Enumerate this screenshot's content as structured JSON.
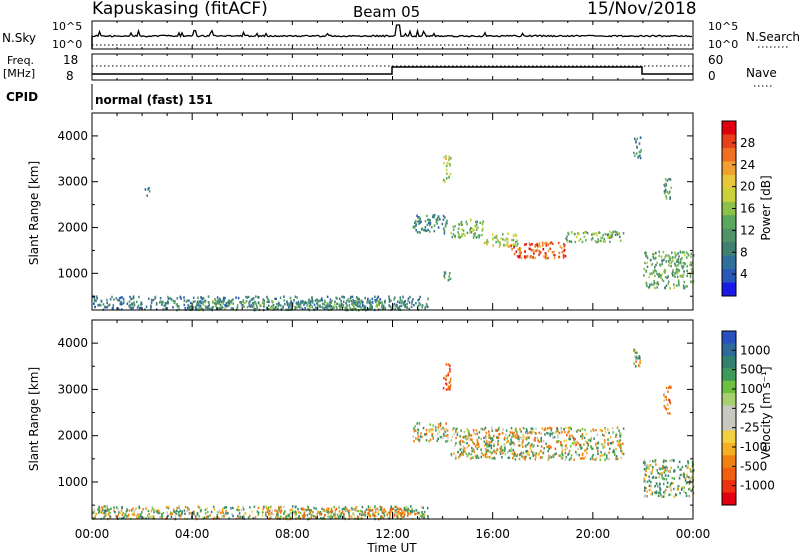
{
  "header": {
    "station": "Kapuskasing (fitACF)",
    "beam": "Beam 05",
    "date": "15/Nov/2018"
  },
  "strips": {
    "nsky_label": "N.Sky",
    "nsky_ticks": [
      "10^5",
      "10^0"
    ],
    "nsearch_label": "N.Search",
    "freq_label_1": "Freq.",
    "freq_label_2": "[MHz]",
    "freq_ticks": [
      "18",
      "8"
    ],
    "nave_label": "Nave",
    "nave_ticks": [
      "60",
      "0"
    ],
    "cpid_label": "CPID",
    "cpid_value": "normal (fast) 151"
  },
  "panels": {
    "ylabel": "Slant Range [km]",
    "yticks": [
      "1000",
      "2000",
      "3000",
      "4000"
    ],
    "xlabel": "Time UT",
    "xticks": [
      "00:00",
      "04:00",
      "08:00",
      "12:00",
      "16:00",
      "20:00",
      "00:00"
    ]
  },
  "colorbars": {
    "power": {
      "label": "Power [dB]",
      "ticks": [
        "4",
        "8",
        "12",
        "16",
        "20",
        "24",
        "28"
      ],
      "colors": [
        "#1a1ae6",
        "#2858b8",
        "#2f6f9a",
        "#3f8070",
        "#4f9468",
        "#5aa860",
        "#8cc048",
        "#c9d23a",
        "#e8c83a",
        "#f0a030",
        "#ee7020",
        "#e84018",
        "#e00010"
      ]
    },
    "velocity": {
      "label": "Velocity [m s⁻¹]",
      "ticks": [
        "1000",
        "500",
        "100",
        "25",
        "-25",
        "-100",
        "-500",
        "-1000"
      ],
      "colors": [
        "#2850c0",
        "#2d6a9a",
        "#338070",
        "#3f9a5a",
        "#6ec040",
        "#a8d070",
        "#c8c8c0",
        "#c8c8c0",
        "#f2d040",
        "#f4b020",
        "#f08010",
        "#f06010",
        "#ec3010",
        "#e00010"
      ]
    }
  },
  "chart_data": [
    {
      "type": "heatmap",
      "title": "Power",
      "xlabel": "Time UT",
      "ylabel": "Slant Range [km]",
      "xlim": [
        0,
        24
      ],
      "ylim": [
        200,
        4500
      ],
      "colorbar_label": "Power [dB]",
      "colorbar_range": [
        0,
        32
      ],
      "patches": [
        {
          "t0": 0.0,
          "t1": 13.4,
          "r0": 220,
          "r1": 520,
          "v": 8
        },
        {
          "t0": 4.0,
          "t1": 12.5,
          "r0": 220,
          "r1": 430,
          "v": 12
        },
        {
          "t0": 14.0,
          "t1": 14.3,
          "r0": 3000,
          "r1": 3600,
          "v": 18
        },
        {
          "t0": 14.3,
          "t1": 15.6,
          "r0": 1800,
          "r1": 2200,
          "v": 14
        },
        {
          "t0": 15.6,
          "t1": 17.0,
          "r0": 1600,
          "r1": 1900,
          "v": 18
        },
        {
          "t0": 16.7,
          "t1": 18.9,
          "r0": 1350,
          "r1": 1700,
          "v": 27
        },
        {
          "t0": 18.9,
          "t1": 21.2,
          "r0": 1700,
          "r1": 1950,
          "v": 14
        },
        {
          "t0": 12.8,
          "t1": 14.2,
          "r0": 1900,
          "r1": 2300,
          "v": 9
        },
        {
          "t0": 14.0,
          "t1": 14.3,
          "r0": 800,
          "r1": 1100,
          "v": 10
        },
        {
          "t0": 22.0,
          "t1": 24.0,
          "r0": 700,
          "r1": 1500,
          "v": 13
        },
        {
          "t0": 21.6,
          "t1": 21.9,
          "r0": 3500,
          "r1": 4000,
          "v": 10
        },
        {
          "t0": 22.8,
          "t1": 23.1,
          "r0": 2500,
          "r1": 3100,
          "v": 11
        },
        {
          "t0": 2.1,
          "t1": 2.3,
          "r0": 2700,
          "r1": 2900,
          "v": 6
        }
      ]
    },
    {
      "type": "heatmap",
      "title": "Velocity",
      "xlabel": "Time UT",
      "ylabel": "Slant Range [km]",
      "xlim": [
        0,
        24
      ],
      "ylim": [
        200,
        4500
      ],
      "colorbar_label": "Velocity [m s⁻¹]",
      "colorbar_ticks": [
        1000,
        500,
        100,
        25,
        -25,
        -100,
        -500,
        -1000
      ],
      "patches": [
        {
          "t0": 0.0,
          "t1": 13.4,
          "r0": 220,
          "r1": 500,
          "v": 60
        },
        {
          "t0": 7.0,
          "t1": 12.6,
          "r0": 220,
          "r1": 450,
          "v": -80
        },
        {
          "t0": 14.0,
          "t1": 14.3,
          "r0": 3000,
          "r1": 3600,
          "v": -400
        },
        {
          "t0": 14.3,
          "t1": 21.2,
          "r0": 1500,
          "r1": 2200,
          "v": 0
        },
        {
          "t0": 12.8,
          "t1": 14.2,
          "r0": 1900,
          "r1": 2300,
          "v": 0
        },
        {
          "t0": 22.0,
          "t1": 24.0,
          "r0": 700,
          "r1": 1500,
          "v": 150
        },
        {
          "t0": 21.6,
          "t1": 21.9,
          "r0": 3500,
          "r1": 4000,
          "v": 0
        },
        {
          "t0": 22.8,
          "t1": 23.1,
          "r0": 2500,
          "r1": 3100,
          "v": -300
        }
      ]
    }
  ]
}
